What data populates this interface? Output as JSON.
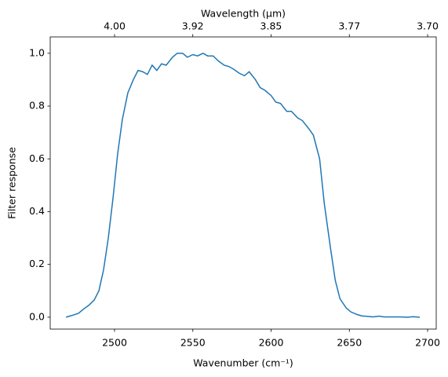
{
  "chart_data": {
    "type": "line",
    "xlabel": "Wavenumber (cm⁻¹)",
    "ylabel": "Filter response",
    "x2label": "Wavelength (μm)",
    "x": [
      2469,
      2473,
      2477,
      2480,
      2483.5,
      2487,
      2490,
      2493,
      2496,
      2499,
      2502,
      2505,
      2508.5,
      2512,
      2515,
      2518,
      2521,
      2524,
      2527,
      2530,
      2533,
      2537,
      2540,
      2543.5,
      2546.5,
      2550,
      2553,
      2556.5,
      2559.5,
      2563,
      2566.5,
      2570,
      2573,
      2576,
      2579.5,
      2583,
      2586,
      2590,
      2593,
      2596,
      2600,
      2603,
      2606,
      2610,
      2613,
      2617,
      2620,
      2624,
      2627,
      2631,
      2634,
      2638,
      2641,
      2644,
      2648,
      2651,
      2655,
      2658,
      2662,
      2665,
      2669,
      2672,
      2682,
      2687,
      2691,
      2695
    ],
    "series": [
      {
        "name": "Filter response",
        "color": "#1f77b4",
        "values": [
          0.0,
          0.007,
          0.015,
          0.03,
          0.045,
          0.065,
          0.1,
          0.18,
          0.3,
          0.45,
          0.62,
          0.75,
          0.85,
          0.9,
          0.935,
          0.93,
          0.92,
          0.955,
          0.935,
          0.96,
          0.955,
          0.985,
          1.0,
          1.0,
          0.985,
          0.995,
          0.99,
          1.0,
          0.99,
          0.99,
          0.97,
          0.955,
          0.95,
          0.94,
          0.925,
          0.915,
          0.93,
          0.9,
          0.87,
          0.86,
          0.84,
          0.815,
          0.81,
          0.78,
          0.78,
          0.755,
          0.745,
          0.715,
          0.69,
          0.6,
          0.43,
          0.26,
          0.14,
          0.07,
          0.035,
          0.02,
          0.01,
          0.005,
          0.003,
          0.001,
          0.004,
          0.001,
          0.001,
          0.0,
          0.002,
          0.0
        ]
      }
    ],
    "xlim": [
      2458.9,
      2705.5
    ],
    "ylim": [
      -0.045,
      1.062
    ],
    "xticks": [
      2500,
      2550,
      2600,
      2650,
      2700
    ],
    "yticks": [
      {
        "value": 0.0,
        "label": "0.0"
      },
      0.2,
      0.4,
      0.6,
      0.8,
      {
        "value": 1.0,
        "label": "1.0"
      }
    ],
    "x2ticks": [
      {
        "value": 4.0,
        "label": "4.00"
      },
      {
        "value": 3.9216,
        "label": "3.92"
      },
      {
        "value": 3.8462,
        "label": "3.85"
      },
      {
        "value": 3.7736,
        "label": "3.77"
      },
      {
        "value": 3.7037,
        "label": "3.70"
      }
    ]
  }
}
